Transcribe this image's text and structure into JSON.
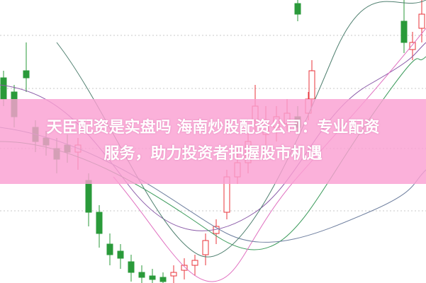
{
  "article": {
    "title_line1": "天臣配资是实盘吗 海南炒股配资公司：专业配资",
    "title_line2": "服务，助力投资者把握股市机遇"
  },
  "colors": {
    "up": "#e8333a",
    "down": "#2a9a3a",
    "banner": "#f9a8d4"
  }
}
